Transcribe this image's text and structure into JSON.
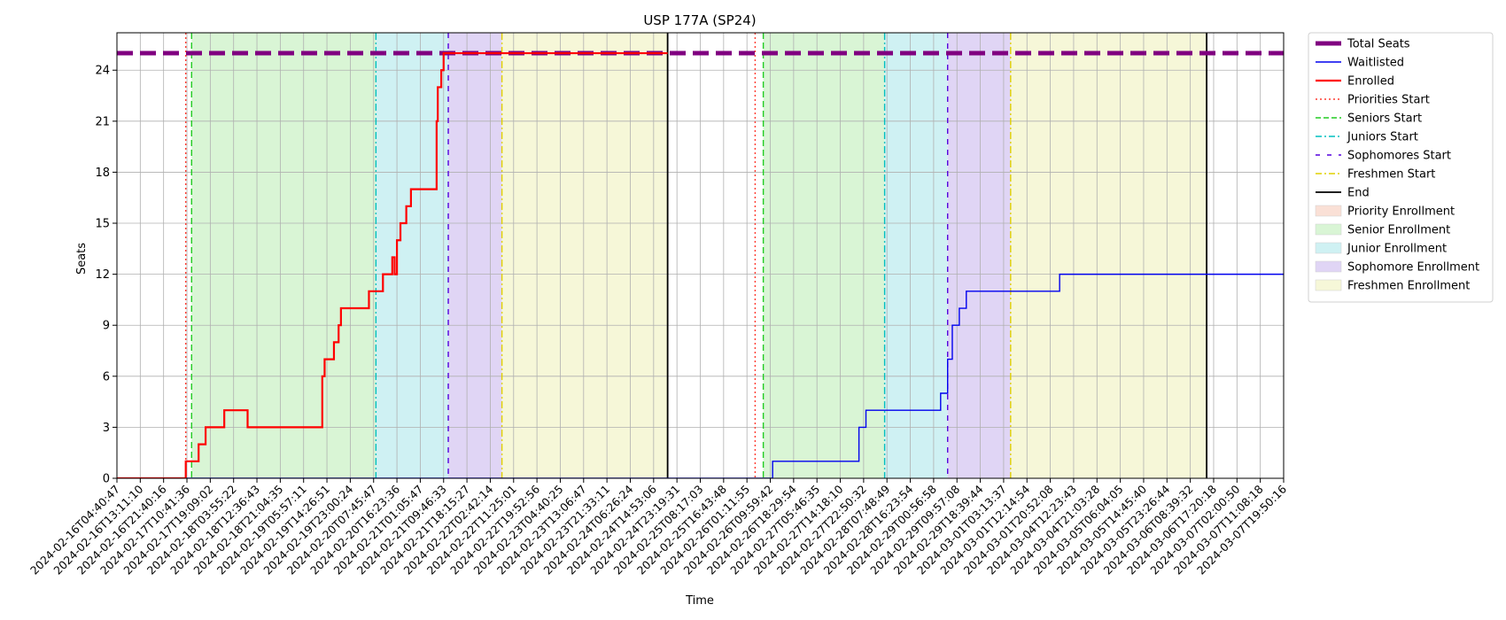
{
  "chart_data": {
    "type": "line",
    "title": "USP 177A (SP24)",
    "xlabel": "Time",
    "ylabel": "Seats",
    "ylim": [
      0,
      26.2
    ],
    "yticks": [
      0,
      3,
      6,
      9,
      12,
      15,
      18,
      21,
      24
    ],
    "grid": true,
    "legend_position": "outside-right",
    "x_ticks": [
      "2024-02-16T04:40:47",
      "2024-02-16T13:11:10",
      "2024-02-16T21:40:16",
      "2024-02-17T10:41:36",
      "2024-02-17T19:09:02",
      "2024-02-18T03:55:22",
      "2024-02-18T12:36:43",
      "2024-02-18T21:04:35",
      "2024-02-19T05:57:11",
      "2024-02-19T14:26:51",
      "2024-02-19T23:00:24",
      "2024-02-20T07:45:47",
      "2024-02-20T16:23:36",
      "2024-02-21T01:05:47",
      "2024-02-21T09:46:33",
      "2024-02-21T18:15:27",
      "2024-02-22T02:42:14",
      "2024-02-22T11:25:01",
      "2024-02-22T19:52:56",
      "2024-02-23T04:40:25",
      "2024-02-23T13:06:47",
      "2024-02-23T21:33:11",
      "2024-02-24T06:26:24",
      "2024-02-24T14:53:06",
      "2024-02-24T23:19:31",
      "2024-02-25T08:17:03",
      "2024-02-25T16:43:48",
      "2024-02-26T01:11:55",
      "2024-02-26T09:59:42",
      "2024-02-26T18:29:54",
      "2024-02-27T05:46:35",
      "2024-02-27T14:18:10",
      "2024-02-27T22:50:32",
      "2024-02-28T07:48:49",
      "2024-02-28T16:23:54",
      "2024-02-29T00:56:58",
      "2024-02-29T09:57:08",
      "2024-02-29T18:39:44",
      "2024-03-01T03:13:37",
      "2024-03-01T12:14:54",
      "2024-03-01T20:52:08",
      "2024-03-04T12:23:43",
      "2024-03-04T21:03:28",
      "2024-03-05T06:04:05",
      "2024-03-05T14:45:40",
      "2024-03-05T23:26:44",
      "2024-03-06T08:39:32",
      "2024-03-06T17:20:18",
      "2024-03-07T02:00:50",
      "2024-03-07T11:08:18",
      "2024-03-07T19:50:16"
    ],
    "spans": [
      {
        "name": "Senior Enrollment",
        "color": "#d9f5d5",
        "from": 3.2,
        "to": 11.1
      },
      {
        "name": "Junior Enrollment",
        "color": "#cff1f3",
        "from": 11.1,
        "to": 14.2
      },
      {
        "name": "Sophomore Enrollment",
        "color": "#e0d5f5",
        "from": 14.2,
        "to": 16.5
      },
      {
        "name": "Freshmen Enrollment",
        "color": "#f6f7d8",
        "from": 16.5,
        "to": 23.6
      },
      {
        "name": "Senior Enrollment",
        "color": "#d9f5d5",
        "from": 27.7,
        "to": 32.9
      },
      {
        "name": "Junior Enrollment",
        "color": "#cff1f3",
        "from": 32.9,
        "to": 35.6
      },
      {
        "name": "Sophomore Enrollment",
        "color": "#e0d5f5",
        "from": 35.6,
        "to": 38.3
      },
      {
        "name": "Freshmen Enrollment",
        "color": "#f6f7d8",
        "from": 38.3,
        "to": 46.7
      }
    ],
    "vlines": [
      {
        "name": "Priorities Start",
        "color": "#ff3b30",
        "dash": "2,3",
        "x": 2.95
      },
      {
        "name": "Seniors Start",
        "color": "#22cc22",
        "dash": "7,4",
        "x": 3.2
      },
      {
        "name": "Juniors Start",
        "color": "#00bfbf",
        "dash": "8,3,2,3",
        "x": 11.1
      },
      {
        "name": "Sophomores Start",
        "color": "#5500dd",
        "dash": "6,6",
        "x": 14.2
      },
      {
        "name": "Freshmen Start",
        "color": "#e0d000",
        "dash": "8,3,2,3",
        "x": 16.5
      },
      {
        "name": "End",
        "color": "#000000",
        "dash": "",
        "x": 23.6
      },
      {
        "name": "Priorities Start",
        "color": "#ff3b30",
        "dash": "2,3",
        "x": 27.35
      },
      {
        "name": "Seniors Start",
        "color": "#22cc22",
        "dash": "7,4",
        "x": 27.7
      },
      {
        "name": "Juniors Start",
        "color": "#00bfbf",
        "dash": "8,3,2,3",
        "x": 32.9
      },
      {
        "name": "Sophomores Start",
        "color": "#5500dd",
        "dash": "6,6",
        "x": 35.6
      },
      {
        "name": "Freshmen Start",
        "color": "#e0d000",
        "dash": "8,3,2,3",
        "x": 38.3
      },
      {
        "name": "End",
        "color": "#000000",
        "dash": "",
        "x": 46.7
      }
    ],
    "series": [
      {
        "name": "Total Seats",
        "color": "#800080",
        "width": 5,
        "dash": "18,8",
        "x": [
          0,
          50
        ],
        "y": [
          25,
          25
        ]
      },
      {
        "name": "Waitlisted",
        "color": "#0000ee",
        "width": 1.4,
        "dash": "",
        "x": [
          0,
          23.7,
          27.8,
          28.1,
          28.1,
          31.8,
          31.8,
          32.1,
          32.1,
          33.1,
          33.1,
          35.3,
          35.3,
          35.6,
          35.6,
          35.8,
          35.8,
          36.1,
          36.1,
          36.4,
          36.4,
          40.4,
          40.4,
          50
        ],
        "y": [
          0,
          0,
          0,
          0,
          1,
          1,
          3,
          3,
          4,
          4,
          4,
          4,
          5,
          5,
          7,
          7,
          9,
          9,
          10,
          10,
          11,
          11,
          12,
          12
        ]
      },
      {
        "name": "Enrolled",
        "color": "#ff0000",
        "width": 2.2,
        "dash": "",
        "x": [
          0,
          2.95,
          2.95,
          3.5,
          3.5,
          3.8,
          3.8,
          4.6,
          4.6,
          5.6,
          5.6,
          8.8,
          8.8,
          8.9,
          8.9,
          9.3,
          9.3,
          9.5,
          9.5,
          9.6,
          9.6,
          10.8,
          10.8,
          11.1,
          11.1,
          11.4,
          11.4,
          11.8,
          11.8,
          11.9,
          11.9,
          12.0,
          12.0,
          12.15,
          12.15,
          12.4,
          12.4,
          12.6,
          12.6,
          13.7,
          13.7,
          13.75,
          13.75,
          13.9,
          13.9,
          14.0,
          14.0,
          14.1,
          14.1,
          14.2,
          14.2,
          23.6
        ],
        "y": [
          0,
          0,
          1,
          1,
          2,
          2,
          3,
          3,
          4,
          4,
          3,
          3,
          6,
          6,
          7,
          7,
          8,
          8,
          9,
          9,
          10,
          10,
          11,
          11,
          11,
          11,
          12,
          12,
          13,
          13,
          12,
          12,
          14,
          14,
          15,
          15,
          16,
          16,
          17,
          17,
          21,
          21,
          23,
          23,
          24,
          24,
          25,
          25,
          25,
          25,
          25,
          25
        ]
      }
    ],
    "legend": [
      {
        "label": "Total Seats",
        "kind": "line",
        "color": "#800080",
        "width": 5,
        "dash": ""
      },
      {
        "label": "Waitlisted",
        "kind": "line",
        "color": "#0000ee",
        "width": 1.4,
        "dash": ""
      },
      {
        "label": "Enrolled",
        "kind": "line",
        "color": "#ff0000",
        "width": 2.2,
        "dash": ""
      },
      {
        "label": "Priorities Start",
        "kind": "line",
        "color": "#ff3b30",
        "width": 1.4,
        "dash": "2,3"
      },
      {
        "label": "Seniors Start",
        "kind": "line",
        "color": "#22cc22",
        "width": 1.4,
        "dash": "6,3"
      },
      {
        "label": "Juniors Start",
        "kind": "line",
        "color": "#00bfbf",
        "width": 1.4,
        "dash": "7,3,2,3"
      },
      {
        "label": "Sophomores Start",
        "kind": "line",
        "color": "#5500dd",
        "width": 1.4,
        "dash": "5,8"
      },
      {
        "label": "Freshmen Start",
        "kind": "line",
        "color": "#e0d000",
        "width": 1.4,
        "dash": "7,3,2,3"
      },
      {
        "label": "End",
        "kind": "line",
        "color": "#000000",
        "width": 1.8,
        "dash": ""
      },
      {
        "label": "Priority Enrollment",
        "kind": "patch",
        "color": "#fae0d6"
      },
      {
        "label": "Senior Enrollment",
        "kind": "patch",
        "color": "#d9f5d5"
      },
      {
        "label": "Junior Enrollment",
        "kind": "patch",
        "color": "#cff1f3"
      },
      {
        "label": "Sophomore Enrollment",
        "kind": "patch",
        "color": "#e0d5f5"
      },
      {
        "label": "Freshmen Enrollment",
        "kind": "patch",
        "color": "#f6f7d8"
      }
    ]
  }
}
